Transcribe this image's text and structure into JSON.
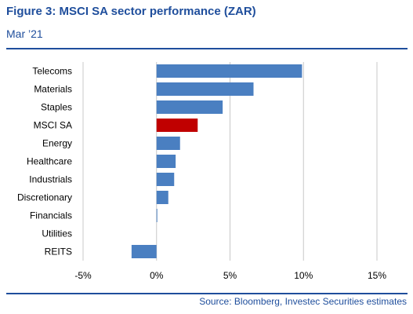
{
  "header": {
    "title": "Figure 3: MSCI SA sector performance (ZAR)",
    "subtitle": "Mar ’21"
  },
  "footer": {
    "source": "Source: Bloomberg, Investec Securities estimates"
  },
  "colors": {
    "bar": "#4a7fc1",
    "highlight": "#c00000",
    "grid": "#c8c8c8",
    "accent": "#1f4e9c"
  },
  "chart_data": {
    "type": "bar",
    "orientation": "horizontal",
    "categories": [
      "Telecoms",
      "Materials",
      "Staples",
      "MSCI SA",
      "Energy",
      "Healthcare",
      "Industrials",
      "Discretionary",
      "Financials",
      "Utilities",
      "REITS"
    ],
    "values": [
      9.9,
      6.6,
      4.5,
      2.8,
      1.6,
      1.3,
      1.2,
      0.8,
      0.05,
      0.0,
      -1.7
    ],
    "highlight_category": "MSCI SA",
    "xlim": [
      -5,
      15
    ],
    "xticks": [
      -5,
      0,
      5,
      10,
      15
    ],
    "xtick_labels": [
      "-5%",
      "0%",
      "5%",
      "10%",
      "15%"
    ],
    "grid": "vertical"
  }
}
